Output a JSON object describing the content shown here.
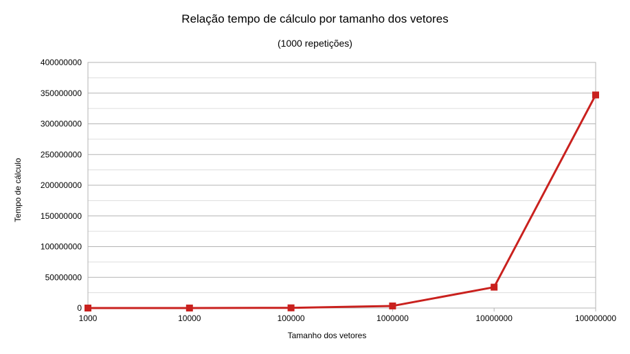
{
  "chart_data": {
    "type": "line",
    "title": "Relação tempo de cálculo por tamanho dos vetores",
    "subtitle": "(1000 repetições)",
    "xlabel": "Tamanho dos vetores",
    "ylabel": "Tempo de cálculo",
    "categories": [
      "1000",
      "10000",
      "100000",
      "1000000",
      "10000000",
      "100000000"
    ],
    "series": [
      {
        "values": [
          0,
          30000,
          300000,
          3400000,
          34000000,
          347000000
        ]
      }
    ],
    "ylim": [
      0,
      400000000
    ],
    "yticks": [
      "0",
      "50000000",
      "100000000",
      "150000000",
      "200000000",
      "250000000",
      "300000000",
      "350000000",
      "400000000"
    ],
    "grid": true,
    "legend": "none",
    "colors": {
      "series": "#c9211e",
      "grid_major": "#b3b3b3",
      "grid_minor": "#dddddd",
      "frame": "#b3b3b3"
    }
  }
}
